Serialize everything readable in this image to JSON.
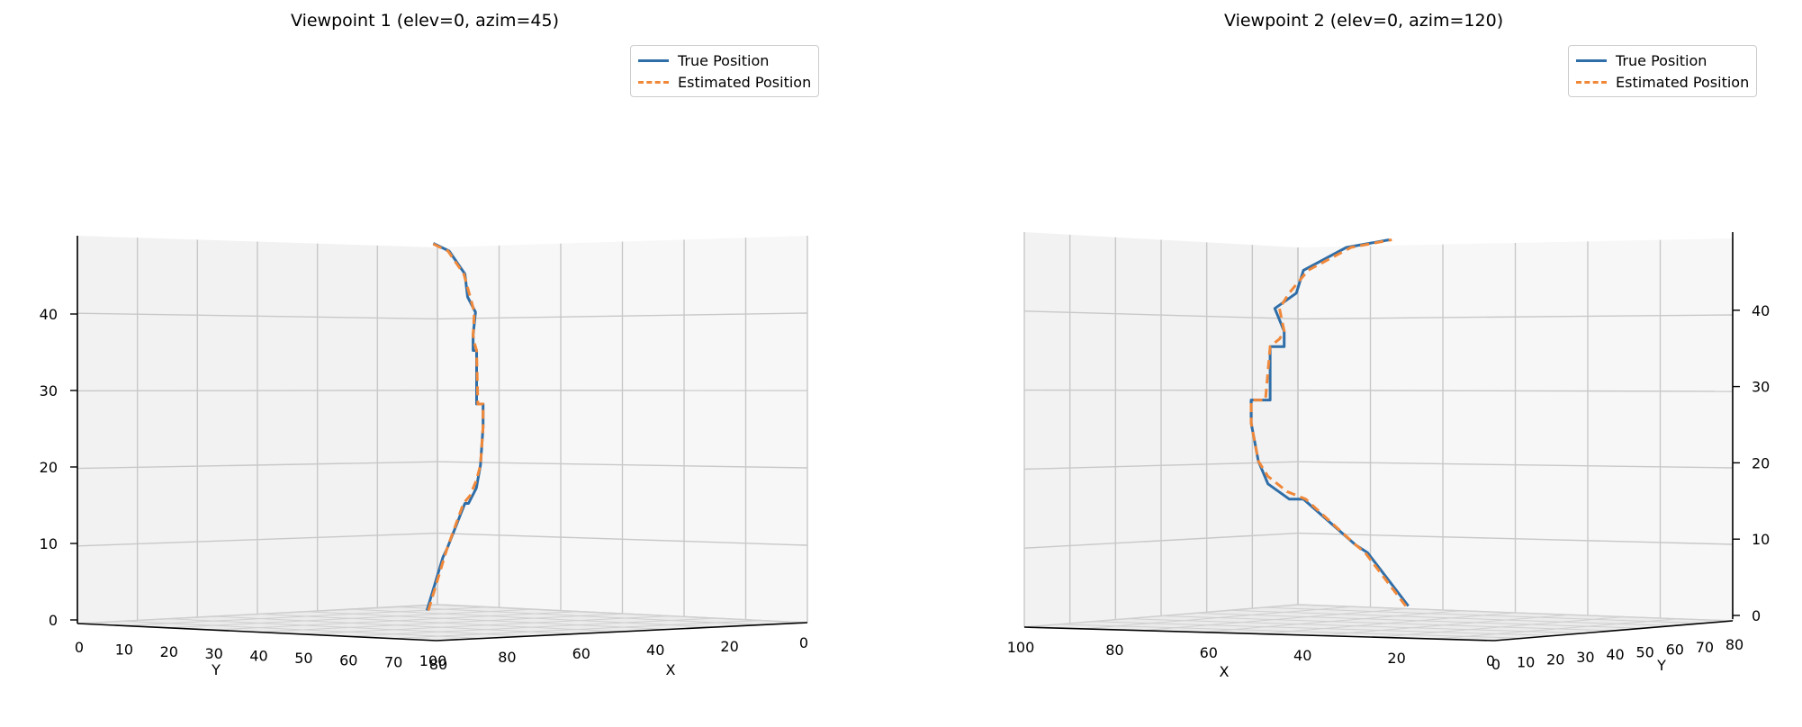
{
  "chart_data": [
    {
      "type": "line",
      "subtype": "3d",
      "title": "Viewpoint 1 (elev=0, azim=45)",
      "view": {
        "elev": 0,
        "azim": 45
      },
      "xlabel": "X",
      "ylabel": "Y",
      "zlabel": "",
      "x_ticks": [
        0,
        20,
        40,
        60,
        80,
        100
      ],
      "y_ticks": [
        0,
        10,
        20,
        30,
        40,
        50,
        60,
        70,
        80
      ],
      "z_ticks": [
        0,
        10,
        20,
        30,
        40
      ],
      "grid": true,
      "legend": {
        "position": "top-right",
        "entries": [
          "True Position",
          "Estimated Position"
        ]
      },
      "series": [
        {
          "name": "True Position",
          "color": "#2f6ea8",
          "dash": "solid",
          "points": [
            [
              12,
              12,
              1
            ],
            [
              17,
              19,
              8
            ],
            [
              19,
              20,
              9
            ],
            [
              27,
              26,
              15
            ],
            [
              30,
              26,
              15
            ],
            [
              33,
              29,
              17
            ],
            [
              34,
              31,
              20
            ],
            [
              35,
              32,
              25
            ],
            [
              35,
              32,
              28
            ],
            [
              32,
              30,
              28
            ],
            [
              32,
              30,
              35
            ],
            [
              29,
              30,
              35
            ],
            [
              29,
              30,
              37
            ],
            [
              31,
              30,
              40
            ],
            [
              28,
              27,
              42
            ],
            [
              27,
              26,
              45
            ],
            [
              21,
              20,
              48
            ],
            [
              15,
              14,
              49
            ]
          ]
        },
        {
          "name": "Estimated Position",
          "color": "#f0883a",
          "dash": "dashed",
          "points": [
            [
              12,
              13,
              1
            ],
            [
              17,
              20,
              8
            ],
            [
              19,
              20,
              9
            ],
            [
              27,
              25,
              15
            ],
            [
              30,
              27,
              16
            ],
            [
              33,
              29,
              18
            ],
            [
              34,
              31,
              20
            ],
            [
              35,
              32,
              25
            ],
            [
              35,
              32,
              28
            ],
            [
              33,
              30,
              28
            ],
            [
              32,
              30,
              35
            ],
            [
              30,
              30,
              36
            ],
            [
              29,
              30,
              37
            ],
            [
              30,
              30,
              40
            ],
            [
              29,
              28,
              42
            ],
            [
              26,
              26,
              45
            ],
            [
              20,
              20,
              48
            ],
            [
              15,
              13,
              49
            ]
          ]
        }
      ]
    },
    {
      "type": "line",
      "subtype": "3d",
      "title": "Viewpoint 2 (elev=0, azim=120)",
      "view": {
        "elev": 0,
        "azim": 120
      },
      "xlabel": "X",
      "ylabel": "Y",
      "zlabel": "",
      "x_ticks": [
        0,
        20,
        40,
        60,
        80,
        100
      ],
      "y_ticks": [
        0,
        10,
        20,
        30,
        40,
        50,
        60,
        70,
        80
      ],
      "z_ticks": [
        0,
        10,
        20,
        30,
        40
      ],
      "grid": true,
      "legend": {
        "position": "top-right",
        "entries": [
          "True Position",
          "Estimated Position"
        ]
      },
      "series": [
        {
          "name": "True Position",
          "color": "#2f6ea8",
          "dash": "solid",
          "points": [
            [
              12,
              12,
              1
            ],
            [
              17,
              19,
              8
            ],
            [
              19,
              20,
              9
            ],
            [
              27,
              26,
              15
            ],
            [
              30,
              26,
              15
            ],
            [
              33,
              29,
              17
            ],
            [
              34,
              31,
              20
            ],
            [
              35,
              32,
              25
            ],
            [
              35,
              32,
              28
            ],
            [
              32,
              30,
              28
            ],
            [
              32,
              30,
              35
            ],
            [
              29,
              30,
              35
            ],
            [
              29,
              30,
              37
            ],
            [
              31,
              30,
              40
            ],
            [
              28,
              27,
              42
            ],
            [
              27,
              26,
              45
            ],
            [
              21,
              20,
              48
            ],
            [
              15,
              14,
              49
            ]
          ]
        },
        {
          "name": "Estimated Position",
          "color": "#f0883a",
          "dash": "dashed",
          "points": [
            [
              12,
              13,
              1
            ],
            [
              17,
              20,
              8
            ],
            [
              19,
              20,
              9
            ],
            [
              27,
              25,
              15
            ],
            [
              30,
              27,
              16
            ],
            [
              33,
              29,
              18
            ],
            [
              34,
              31,
              20
            ],
            [
              35,
              32,
              25
            ],
            [
              35,
              32,
              28
            ],
            [
              33,
              30,
              28
            ],
            [
              32,
              30,
              35
            ],
            [
              30,
              30,
              36
            ],
            [
              29,
              30,
              37
            ],
            [
              30,
              30,
              40
            ],
            [
              29,
              28,
              42
            ],
            [
              26,
              26,
              45
            ],
            [
              20,
              20,
              48
            ],
            [
              15,
              13,
              49
            ]
          ]
        }
      ]
    }
  ]
}
